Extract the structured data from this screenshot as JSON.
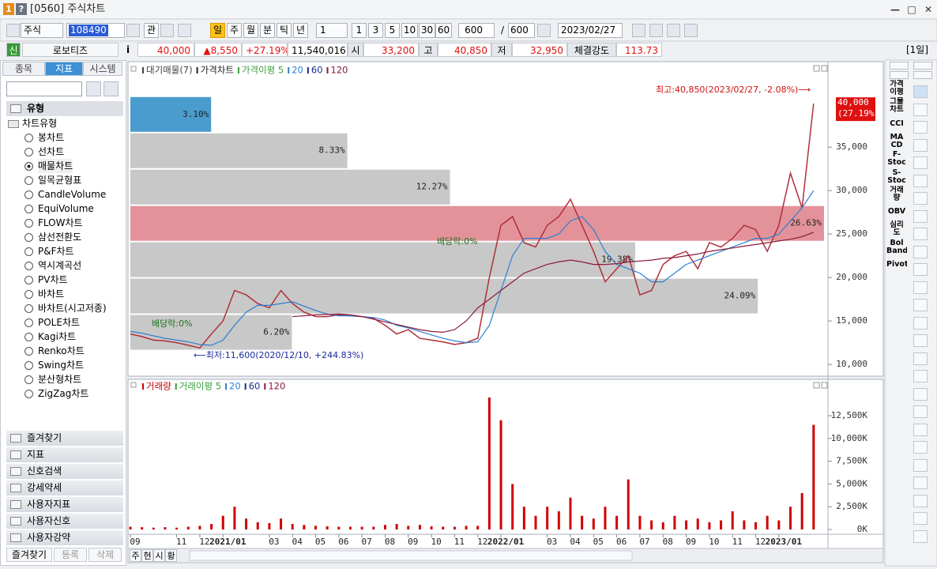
{
  "window": {
    "icons": [
      "1",
      "?"
    ],
    "title": "[0560] 주식차트"
  },
  "toolbar": {
    "market": "주식",
    "code": "108490",
    "link": "관",
    "periods": [
      "일",
      "주",
      "월",
      "분",
      "틱",
      "년"
    ],
    "period_selected": 0,
    "period_count": "1",
    "intervals": [
      "1",
      "3",
      "5",
      "10",
      "30",
      "60"
    ],
    "count": "600",
    "separator": "/",
    "total": "600",
    "date": "2023/02/27"
  },
  "quote": {
    "badge": "신",
    "name": "로보티즈",
    "info": "i",
    "price": "40,000",
    "change": "▲8,550",
    "change_pct": "+27.19%",
    "volume": "11,540,016",
    "open_label": "시",
    "open": "33,200",
    "high_label": "고",
    "high": "40,850",
    "low_label": "저",
    "low": "32,950",
    "strength_label": "체결강도",
    "strength": "113.73",
    "period": "[1일]"
  },
  "sidebar": {
    "tabs": [
      "종목",
      "지표",
      "시스템"
    ],
    "tab_selected": 1,
    "section": "유형",
    "group": "차트유형",
    "items": [
      "봉차트",
      "선차트",
      "매물차트",
      "일목균형표",
      "CandleVolume",
      "EquiVolume",
      "FLOW차트",
      "삼선전환도",
      "P&F차트",
      "역시계곡선",
      "PV차트",
      "바차트",
      "바차트(시고저종)",
      "POLE차트",
      "Kagi차트",
      "Renko차트",
      "Swing차트",
      "분산형차트",
      "ZigZag차트"
    ],
    "selected_index": 2,
    "folders": [
      "즐겨찾기",
      "지표",
      "신호검색",
      "강세약세",
      "사용자지표",
      "사용자신호",
      "사용자강약"
    ],
    "buttons": [
      "즐겨찾기",
      "등록",
      "삭제"
    ]
  },
  "right_toolbar": {
    "items": [
      [
        "가격",
        "이평"
      ],
      [
        "그물",
        "차트"
      ],
      [
        "CCI"
      ],
      [
        "MA",
        "CD"
      ],
      [
        "F-",
        "Stoc"
      ],
      [
        "S-",
        "Stoc"
      ],
      [
        "거래",
        "량"
      ],
      [
        "OBV"
      ],
      [
        "심리",
        "도"
      ],
      [
        "Bol",
        "Band"
      ],
      [
        "Pivot"
      ]
    ]
  },
  "bottom_tabs": [
    "주",
    "현",
    "시",
    "황"
  ],
  "chart_data": [
    {
      "type": "line",
      "legend": [
        {
          "name": "대기매물(7)",
          "color": "#404040"
        },
        {
          "name": "가격차트",
          "color": "#202020"
        },
        {
          "name": "가격이평 5",
          "color": "#3aa03a"
        },
        {
          "name": "20",
          "color": "#2d7fd0"
        },
        {
          "name": "60",
          "color": "#1a2a8a"
        },
        {
          "name": "120",
          "color": "#8b1a3a"
        }
      ],
      "x": [
        0,
        0.5,
        1,
        1.5,
        2,
        2.5,
        3,
        3.5,
        4,
        4.5,
        5,
        5.5,
        6,
        6.5,
        7,
        7.5,
        8,
        8.5,
        9,
        9.5,
        10,
        10.5,
        11,
        11.5,
        12,
        12.5,
        13,
        13.5,
        14,
        14.5,
        15,
        15.5,
        16,
        16.5,
        17,
        17.5,
        18,
        18.5,
        19,
        19.5,
        20,
        20.5,
        21,
        21.5,
        22,
        22.5,
        23,
        23.5,
        24,
        24.5,
        25,
        25.5,
        26,
        26.5,
        27,
        27.5,
        28,
        28.5,
        29,
        29.5
      ],
      "series": [
        {
          "color": "#b0303a",
          "values": [
            13500,
            13200,
            12800,
            12700,
            12500,
            12200,
            11900,
            13500,
            15000,
            18500,
            18000,
            17000,
            16500,
            18500,
            17000,
            16000,
            15500,
            15500,
            15700,
            15600,
            15500,
            15300,
            14500,
            13500,
            14000,
            13000,
            12800,
            12600,
            12300,
            12500,
            13000,
            20000,
            26000,
            27000,
            24000,
            23500,
            26000,
            27000,
            29000,
            26000,
            23000,
            19500,
            21000,
            22500,
            18000,
            18500,
            21500,
            22500,
            23000,
            21000,
            24000,
            23500,
            24500,
            26000,
            25500,
            23000,
            26000,
            32000,
            28000,
            40000
          ]
        },
        {
          "color": "#2d7fd0",
          "values": [
            13800,
            13600,
            13300,
            13000,
            12800,
            12600,
            12300,
            12200,
            12800,
            14500,
            16000,
            16800,
            16800,
            17000,
            17200,
            16700,
            16200,
            15800,
            15600,
            15600,
            15500,
            15400,
            15100,
            14500,
            14200,
            13800,
            13400,
            13000,
            12700,
            12500,
            12600,
            14500,
            18500,
            22500,
            24500,
            24500,
            24500,
            25000,
            26500,
            27000,
            25500,
            23000,
            21500,
            21000,
            20500,
            19500,
            19500,
            20500,
            21500,
            22000,
            22500,
            23000,
            23500,
            24000,
            24500,
            24500,
            25000,
            26500,
            28000,
            30000
          ]
        },
        {
          "color": "#8b1a3a",
          "values": [
            null,
            null,
            null,
            null,
            null,
            null,
            null,
            null,
            null,
            null,
            null,
            null,
            null,
            null,
            15500,
            15600,
            15700,
            15750,
            15800,
            15700,
            15500,
            15200,
            14900,
            14600,
            14300,
            14000,
            13800,
            13700,
            14000,
            15000,
            16500,
            17500,
            18500,
            19500,
            20500,
            21000,
            21500,
            21800,
            22000,
            21800,
            21500,
            21500,
            21600,
            21800,
            21900,
            22000,
            22200,
            22300,
            22500,
            22700,
            23000,
            23200,
            23400,
            23600,
            23800,
            24000,
            24200,
            24400,
            24700,
            25200
          ]
        }
      ],
      "volume_profile": {
        "low": 11600,
        "high": 40850,
        "values": [
          3.1,
          8.33,
          12.27,
          26.63,
          19.38,
          24.09,
          6.2
        ],
        "value_labels": [
          "3.10%",
          "8.33%",
          "12.27%",
          "26.63%",
          "19.38%",
          "24.09%",
          "6.20%"
        ],
        "colors": [
          "#4a9ccf",
          "#c8c8c8",
          "#c8c8c8",
          "#e3929a",
          "#c8c8c8",
          "#c8c8c8",
          "#c8c8c8"
        ]
      },
      "annotations": [
        {
          "text": "최고:40,850(2023/02/27, -2.08%)⟶",
          "color": "#d01010"
        },
        {
          "text": "⟵최저:11,600(2020/12/10, +244.83%)",
          "color": "#1a2a9a"
        },
        {
          "text": "배당락:0%",
          "color": "#207020"
        },
        {
          "text": "배당락:0%",
          "color": "#207020"
        }
      ],
      "last_value": 40000,
      "last_label": [
        "40,000",
        "(27.19%)"
      ],
      "last_color": "#e01010",
      "xlim": [
        0,
        29.95
      ],
      "ylim": [
        8650,
        44650
      ],
      "yticks": [
        {
          "value": 10000,
          "label": "10,000"
        },
        {
          "value": 15000,
          "label": "15,000"
        },
        {
          "value": 20000,
          "label": "20,000"
        },
        {
          "value": 25000,
          "label": "25,000"
        },
        {
          "value": 30000,
          "label": "30,000"
        },
        {
          "value": 35000,
          "label": "35,000"
        }
      ]
    },
    {
      "type": "bar",
      "legend": [
        {
          "name": "거래량",
          "color": "#d00000"
        },
        {
          "name": "거래이평 5",
          "color": "#3aa03a"
        },
        {
          "name": "20",
          "color": "#2d7fd0"
        },
        {
          "name": "60",
          "color": "#1a2a8a"
        },
        {
          "name": "120",
          "color": "#8b1a3a"
        }
      ],
      "color": "#d00000",
      "x": [
        0,
        0.5,
        1,
        1.5,
        2,
        2.5,
        3,
        3.5,
        4,
        4.5,
        5,
        5.5,
        6,
        6.5,
        7,
        7.5,
        8,
        8.5,
        9,
        9.5,
        10,
        10.5,
        11,
        11.5,
        12,
        12.5,
        13,
        13.5,
        14,
        14.5,
        15,
        15.5,
        16,
        16.5,
        17,
        17.5,
        18,
        18.5,
        19,
        19.5,
        20,
        20.5,
        21,
        21.5,
        22,
        22.5,
        23,
        23.5,
        24,
        24.5,
        25,
        25.5,
        26,
        26.5,
        27,
        27.5,
        28,
        28.5,
        29,
        29.5
      ],
      "values": [
        300000,
        250000,
        200000,
        250000,
        200000,
        300000,
        400000,
        600000,
        1500000,
        2500000,
        1200000,
        800000,
        700000,
        1200000,
        600000,
        500000,
        400000,
        350000,
        300000,
        300000,
        300000,
        300000,
        500000,
        600000,
        400000,
        500000,
        350000,
        300000,
        300000,
        400000,
        400000,
        14500000,
        12000000,
        5000000,
        2500000,
        1500000,
        2500000,
        2000000,
        3500000,
        1500000,
        1200000,
        2500000,
        1500000,
        5500000,
        1500000,
        1000000,
        800000,
        1500000,
        1000000,
        1200000,
        800000,
        1000000,
        2000000,
        1000000,
        800000,
        1500000,
        1000000,
        2500000,
        4000000,
        11500000
      ],
      "xlim": [
        0,
        29.95
      ],
      "ylim": [
        0,
        16150000
      ],
      "yticks": [
        {
          "value": 0,
          "label": "0K"
        },
        {
          "value": 2500000,
          "label": "2,500K"
        },
        {
          "value": 5000000,
          "label": "5,000K"
        },
        {
          "value": 7500000,
          "label": "7,500K"
        },
        {
          "value": 10000000,
          "label": "10,000K"
        },
        {
          "value": 12500000,
          "label": "12,500K"
        }
      ],
      "xticks": [
        {
          "value": 0,
          "label": "09"
        },
        {
          "value": 2,
          "label": "11"
        },
        {
          "value": 3,
          "label": "12"
        },
        {
          "value": 4,
          "label": "2021/01"
        },
        {
          "value": 6,
          "label": "03"
        },
        {
          "value": 7,
          "label": "04"
        },
        {
          "value": 8,
          "label": "05"
        },
        {
          "value": 9,
          "label": "06"
        },
        {
          "value": 10,
          "label": "07"
        },
        {
          "value": 11,
          "label": "08"
        },
        {
          "value": 12,
          "label": "09"
        },
        {
          "value": 13,
          "label": "10"
        },
        {
          "value": 14,
          "label": "11"
        },
        {
          "value": 15,
          "label": "12"
        },
        {
          "value": 16,
          "label": "2022/01"
        },
        {
          "value": 18,
          "label": "03"
        },
        {
          "value": 19,
          "label": "04"
        },
        {
          "value": 20,
          "label": "05"
        },
        {
          "value": 21,
          "label": "06"
        },
        {
          "value": 22,
          "label": "07"
        },
        {
          "value": 23,
          "label": "08"
        },
        {
          "value": 24,
          "label": "09"
        },
        {
          "value": 25,
          "label": "10"
        },
        {
          "value": 26,
          "label": "11"
        },
        {
          "value": 27,
          "label": "12"
        },
        {
          "value": 28,
          "label": "2023/01"
        }
      ]
    }
  ]
}
